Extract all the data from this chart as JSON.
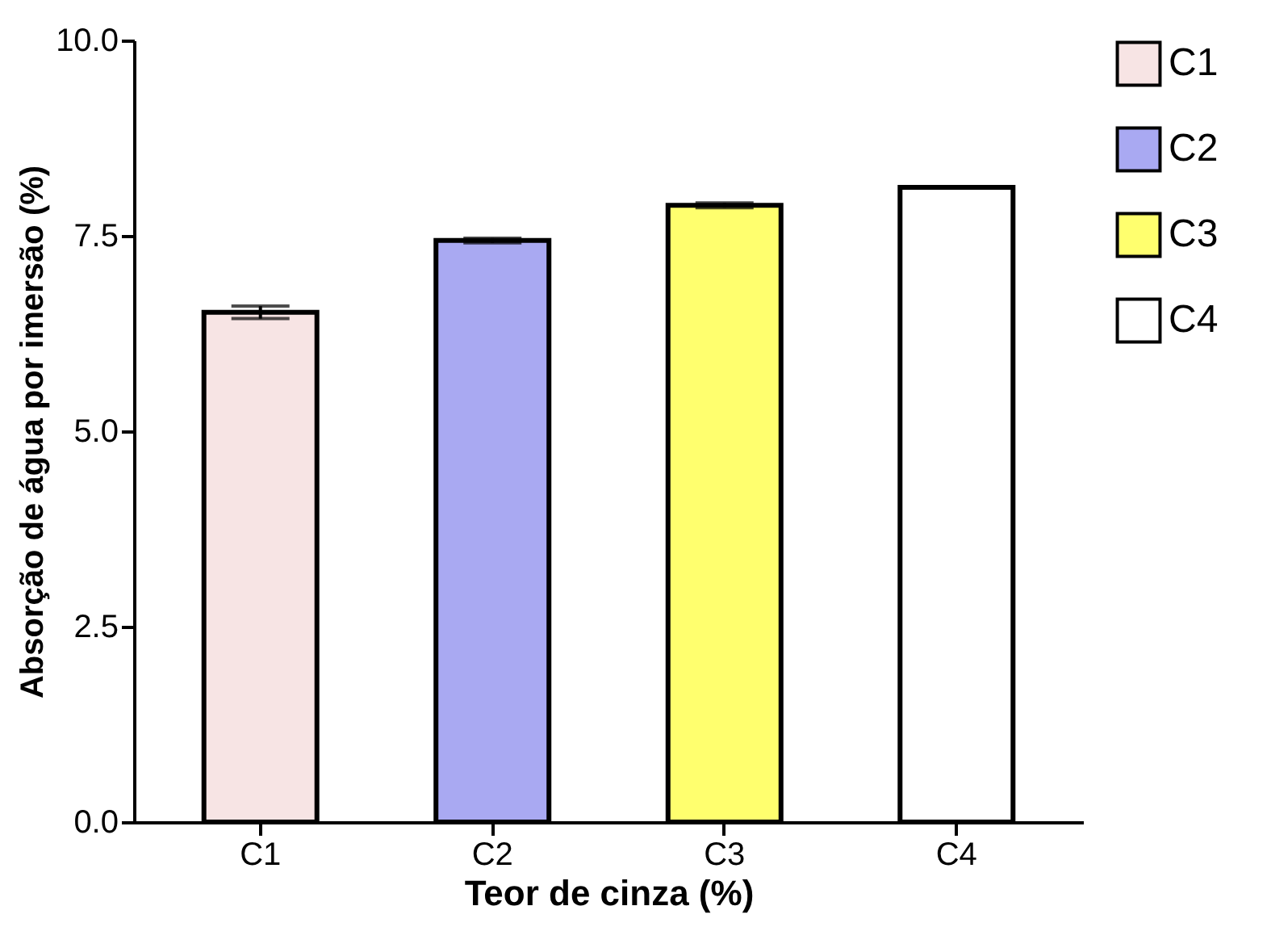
{
  "chart_data": {
    "type": "bar",
    "xlabel": "Teor de cinza (%)",
    "ylabel": "Absorção de água por imersão (%)",
    "categories": [
      "C1",
      "C2",
      "C3",
      "C4"
    ],
    "series": [
      {
        "name": "C1",
        "color": "#f7e4e4",
        "values": [
          6.52,
          null,
          null,
          null
        ],
        "errors": [
          0.08,
          null,
          null,
          null
        ]
      },
      {
        "name": "C2",
        "color": "#a9a9f2",
        "values": [
          null,
          7.44,
          null,
          null
        ],
        "errors": [
          null,
          0.03,
          null,
          null
        ]
      },
      {
        "name": "C3",
        "color": "#ffff6e",
        "values": [
          null,
          null,
          7.89,
          null
        ],
        "errors": [
          null,
          null,
          0.03,
          null
        ]
      },
      {
        "name": "C4",
        "color": "#ffffff",
        "values": [
          null,
          null,
          null,
          8.12
        ]
      }
    ],
    "ylim": [
      0,
      10
    ],
    "yticks": [
      {
        "value": 0,
        "label": "0.0"
      },
      {
        "value": 2.5,
        "label": "2.5"
      },
      {
        "value": 5,
        "label": "5.0"
      },
      {
        "value": 7.5,
        "label": "7.5"
      },
      {
        "value": 10,
        "label": "10.0"
      }
    ],
    "grid": false,
    "legend": "top right"
  }
}
